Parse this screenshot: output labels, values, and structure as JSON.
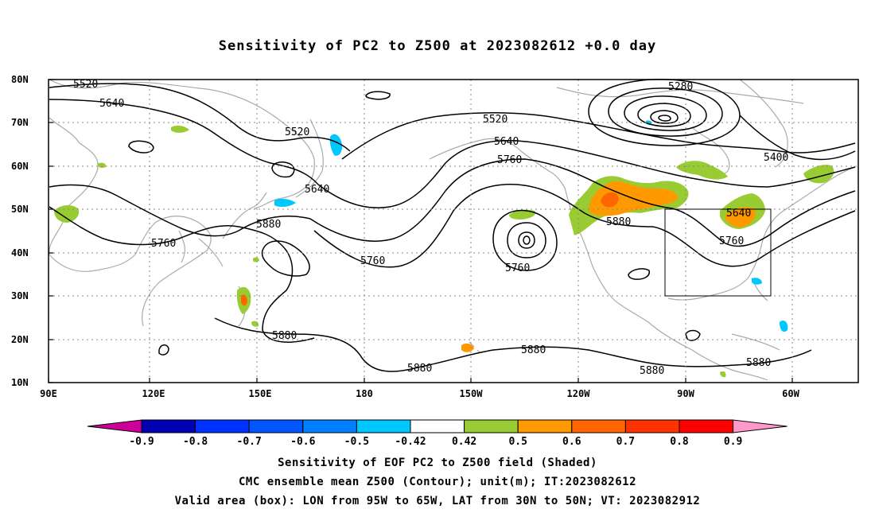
{
  "title": "Sensitivity of PC2 to Z500 at 2023082612 +0.0 day",
  "map": {
    "lat_labels": [
      "80N",
      "70N",
      "60N",
      "50N",
      "40N",
      "30N",
      "20N",
      "10N"
    ],
    "lon_labels": [
      "90E",
      "120E",
      "150E",
      "180",
      "150W",
      "120W",
      "90W",
      "60W"
    ],
    "contour_labels": [
      "5520",
      "5640",
      "5520",
      "5640",
      "5760",
      "5880",
      "5760",
      "5880",
      "5280",
      "5520",
      "5640",
      "5760",
      "5400",
      "5880",
      "5640",
      "5760",
      "5760",
      "5880",
      "5880",
      "5880",
      "5880"
    ],
    "valid_box": {
      "lon_range": [
        -95,
        -65
      ],
      "lat_range": [
        30,
        50
      ]
    },
    "coastline_color": "#aaaaaa",
    "contour_color": "#000000"
  },
  "colorbar": {
    "labels": [
      "-0.9",
      "-0.8",
      "-0.7",
      "-0.6",
      "-0.5",
      "-0.42",
      "0.42",
      "0.5",
      "0.6",
      "0.7",
      "0.8",
      "0.9"
    ],
    "colors": [
      "#0000b3",
      "#0033ff",
      "#0055ff",
      "#0080ff",
      "#00c8ff",
      "#ffffff",
      "#99cc33",
      "#ff9900",
      "#ff6600",
      "#ff3300",
      "#ff0000"
    ],
    "low_end_color": "#cc0099",
    "high_end_color": "#ff99cc"
  },
  "shading_colors": {
    "green": "#99cc33",
    "orange": "#ff9900",
    "dark_orange": "#ff6600",
    "cyan": "#00c8ff"
  },
  "captions": {
    "line1": "Sensitivity of EOF PC2 to Z500 field (Shaded)",
    "line2": "CMC ensemble mean Z500 (Contour); unit(m); IT:2023082612",
    "line3": "Valid area (box): LON from 95W to 65W, LAT from 30N to 50N; VT: 2023082912"
  }
}
